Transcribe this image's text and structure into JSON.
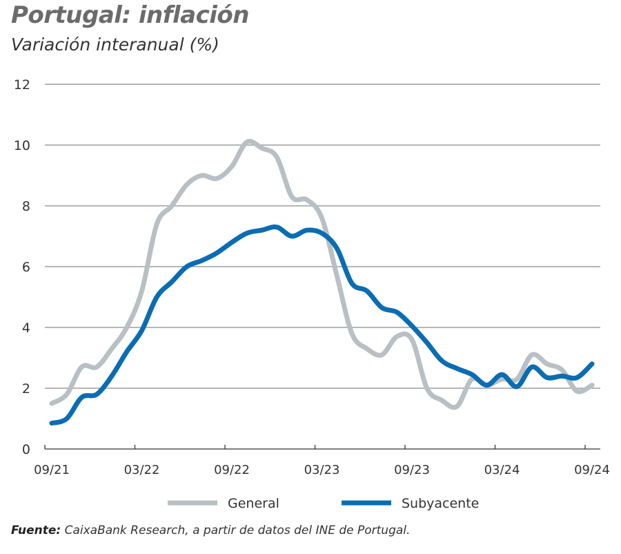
{
  "title": "Portugal: inflación",
  "subtitle": "Variación interanual (%)",
  "source": {
    "label": "Fuente:",
    "text": "CaixaBank Research, a partir de datos del INE de Portugal."
  },
  "chart_data": {
    "type": "line",
    "title": "Portugal: inflación",
    "subtitle": "Variación interanual (%)",
    "x_tick_labels": [
      "09/21",
      "03/22",
      "09/22",
      "03/23",
      "09/23",
      "03/24",
      "09/24"
    ],
    "x": [
      "09/21",
      "10/21",
      "11/21",
      "12/21",
      "01/22",
      "02/22",
      "03/22",
      "04/22",
      "05/22",
      "06/22",
      "07/22",
      "08/22",
      "09/22",
      "10/22",
      "11/22",
      "12/22",
      "01/23",
      "02/23",
      "03/23",
      "04/23",
      "05/23",
      "06/23",
      "07/23",
      "08/23",
      "09/23",
      "10/23",
      "11/23",
      "12/23",
      "01/24",
      "02/24",
      "03/24",
      "04/24",
      "05/24",
      "06/24",
      "07/24",
      "08/24",
      "09/24"
    ],
    "ylim": [
      0,
      12
    ],
    "y_ticks": [
      0,
      2,
      4,
      6,
      8,
      10,
      12
    ],
    "grid": "horizontal",
    "legend_position": "bottom",
    "series": [
      {
        "name": "General",
        "color": "#b8c0c5",
        "values": [
          1.5,
          1.8,
          2.7,
          2.7,
          3.3,
          4.0,
          5.2,
          7.4,
          8.0,
          8.7,
          9.0,
          8.9,
          9.3,
          10.1,
          9.9,
          9.6,
          8.3,
          8.2,
          7.6,
          5.7,
          3.8,
          3.3,
          3.1,
          3.7,
          3.6,
          2.0,
          1.6,
          1.4,
          2.3,
          2.1,
          2.3,
          2.3,
          3.1,
          2.8,
          2.6,
          1.9,
          2.1
        ]
      },
      {
        "name": "Subyacente",
        "color": "#0a6db3",
        "values": [
          0.85,
          1.0,
          1.7,
          1.8,
          2.4,
          3.2,
          3.9,
          5.0,
          5.5,
          6.0,
          6.2,
          6.45,
          6.8,
          7.1,
          7.2,
          7.3,
          7.0,
          7.2,
          7.1,
          6.6,
          5.45,
          5.2,
          4.65,
          4.5,
          4.05,
          3.5,
          2.9,
          2.65,
          2.45,
          2.1,
          2.45,
          2.05,
          2.7,
          2.35,
          2.4,
          2.35,
          2.8
        ]
      }
    ]
  }
}
